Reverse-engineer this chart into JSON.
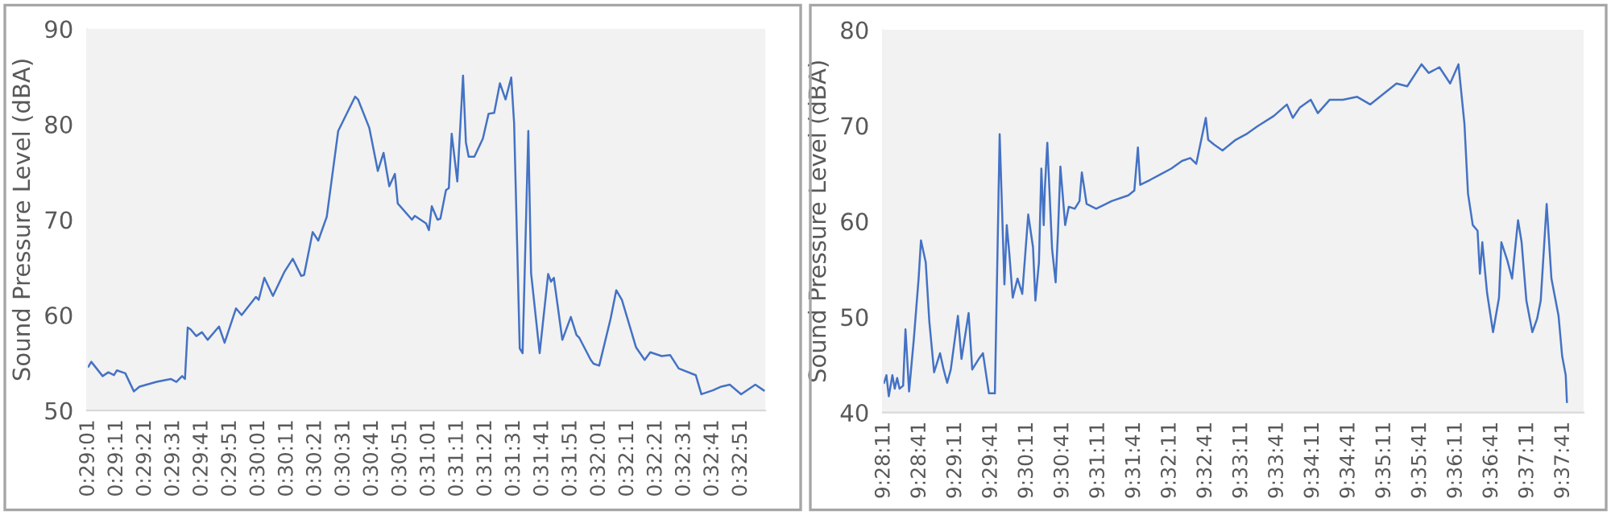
{
  "chart_data": [
    {
      "type": "line",
      "ylabel": "Sound Pressure Level (dBA)",
      "color": "#4472c4",
      "x": [
        0.48361,
        0.48389,
        0.485,
        0.48556,
        0.48611,
        0.48639,
        0.48722,
        0.48806,
        0.48861,
        0.49028,
        0.49167,
        0.49222,
        0.49278,
        0.49306,
        0.49333,
        0.49361,
        0.49417,
        0.49472,
        0.49528,
        0.49639,
        0.49694,
        0.49806,
        0.49861,
        0.5,
        0.50028,
        0.50083,
        0.50167,
        0.50278,
        0.50361,
        0.50444,
        0.50472,
        0.50556,
        0.50611,
        0.50694,
        0.50806,
        0.50972,
        0.51,
        0.51111,
        0.51194,
        0.5125,
        0.51306,
        0.51361,
        0.51389,
        0.51528,
        0.51556,
        0.51667,
        0.51694,
        0.51722,
        0.51778,
        0.51806,
        0.51861,
        0.51889,
        0.51917,
        0.51972,
        0.52028,
        0.52056,
        0.52083,
        0.52139,
        0.52222,
        0.52278,
        0.52333,
        0.52389,
        0.52444,
        0.525,
        0.52528,
        0.52583,
        0.52611,
        0.52667,
        0.52694,
        0.52778,
        0.52861,
        0.52889,
        0.52917,
        0.53,
        0.53083,
        0.53139,
        0.53167,
        0.53278,
        0.53306,
        0.53361,
        0.53472,
        0.53528,
        0.53583,
        0.53722,
        0.53806,
        0.53861,
        0.53972,
        0.54056,
        0.54139,
        0.54306,
        0.54361,
        0.54472,
        0.54556,
        0.54639,
        0.5475,
        0.54889,
        0.54972
      ],
      "values": [
        54.6,
        55.1,
        53.6,
        54.0,
        53.7,
        54.2,
        53.9,
        52.0,
        52.5,
        53.0,
        53.3,
        53.0,
        53.6,
        53.3,
        58.7,
        58.5,
        57.8,
        58.2,
        57.4,
        58.8,
        57.1,
        60.7,
        60.0,
        61.9,
        61.6,
        63.9,
        62.0,
        64.5,
        65.9,
        64.1,
        64.2,
        68.7,
        67.8,
        70.3,
        79.3,
        82.9,
        82.6,
        79.6,
        75.1,
        77.0,
        73.5,
        74.8,
        71.7,
        70.0,
        70.4,
        69.6,
        68.9,
        71.4,
        70.0,
        70.1,
        73.1,
        73.3,
        79.0,
        74.0,
        85.1,
        78.1,
        76.6,
        76.6,
        78.5,
        81.1,
        81.2,
        84.3,
        82.6,
        84.9,
        80.1,
        56.5,
        56.0,
        79.3,
        64.4,
        56.0,
        64.3,
        63.5,
        63.9,
        57.4,
        59.8,
        57.9,
        57.6,
        55.3,
        54.9,
        54.7,
        59.6,
        62.6,
        61.6,
        56.6,
        55.3,
        56.1,
        55.7,
        55.8,
        54.4,
        53.7,
        51.7,
        52.1,
        52.5,
        52.7,
        51.7,
        52.7,
        52.1
      ],
      "xlim": [
        0.48347,
        0.54986
      ],
      "xticks": [
        {
          "value": 0.48361,
          "label": "0:29:01"
        },
        {
          "value": 0.48639,
          "label": "0:29:11"
        },
        {
          "value": 0.48917,
          "label": "0:29:21"
        },
        {
          "value": 0.49194,
          "label": "0:29:31"
        },
        {
          "value": 0.49472,
          "label": "0:29:41"
        },
        {
          "value": 0.4975,
          "label": "0:29:51"
        },
        {
          "value": 0.50028,
          "label": "0:30:01"
        },
        {
          "value": 0.50306,
          "label": "0:30:11"
        },
        {
          "value": 0.50583,
          "label": "0:30:21"
        },
        {
          "value": 0.50861,
          "label": "0:30:31"
        },
        {
          "value": 0.51139,
          "label": "0:30:41"
        },
        {
          "value": 0.51417,
          "label": "0:30:51"
        },
        {
          "value": 0.51694,
          "label": "0:31:01"
        },
        {
          "value": 0.51972,
          "label": "0:31:11"
        },
        {
          "value": 0.5225,
          "label": "0:31:21"
        },
        {
          "value": 0.52528,
          "label": "0:31:31"
        },
        {
          "value": 0.52806,
          "label": "0:31:41"
        },
        {
          "value": 0.53083,
          "label": "0:31:51"
        },
        {
          "value": 0.53361,
          "label": "0:32:01"
        },
        {
          "value": 0.53639,
          "label": "0:32:11"
        },
        {
          "value": 0.53917,
          "label": "0:32:21"
        },
        {
          "value": 0.54194,
          "label": "0:32:31"
        },
        {
          "value": 0.54472,
          "label": "0:32:41"
        },
        {
          "value": 0.5475,
          "label": "0:32:51"
        }
      ],
      "ylim": [
        50,
        90
      ],
      "yticks": [
        50,
        60,
        70,
        80,
        90
      ]
    },
    {
      "type": "line",
      "ylabel": "Sound Pressure Level (dBA)",
      "color": "#4472c4",
      "x": [
        9.46972,
        9.47028,
        9.47083,
        9.47167,
        9.47222,
        9.47278,
        9.47333,
        9.47417,
        9.47472,
        9.47556,
        9.47667,
        9.47778,
        9.47833,
        9.47944,
        9.48028,
        9.48139,
        9.48278,
        9.48361,
        9.48444,
        9.48528,
        9.48694,
        9.48778,
        9.48944,
        9.49028,
        9.49194,
        9.49278,
        9.49417,
        9.49556,
        9.49667,
        9.49778,
        9.49833,
        9.49889,
        9.49972,
        9.50083,
        9.50194,
        9.50333,
        9.50444,
        9.505,
        9.50583,
        9.50639,
        9.50694,
        9.50722,
        9.50778,
        9.50889,
        9.50972,
        9.51028,
        9.51083,
        9.51194,
        9.51278,
        9.51417,
        9.51528,
        9.51583,
        9.51694,
        9.51917,
        9.52278,
        9.52667,
        9.52806,
        9.52889,
        9.52944,
        9.53167,
        9.53417,
        9.53667,
        9.53917,
        9.54111,
        9.5425,
        9.54472,
        9.54528,
        9.54667,
        9.54861,
        9.55167,
        9.55417,
        9.55667,
        9.56056,
        9.56361,
        9.565,
        9.56667,
        9.56917,
        9.57083,
        9.57361,
        9.57667,
        9.58,
        9.58306,
        9.58611,
        9.58917,
        9.59167,
        9.595,
        9.59667,
        9.59917,
        9.60167,
        9.60361,
        9.605,
        9.60583,
        9.60694,
        9.60806,
        9.60861,
        9.60917,
        9.61028,
        9.61167,
        9.61306,
        9.61361,
        9.615,
        9.61611,
        9.6175,
        9.61833,
        9.61944,
        9.62083,
        9.62194,
        9.62278,
        9.62417,
        9.62528,
        9.62694,
        9.62778,
        9.62861,
        9.62889
      ],
      "values": [
        43.1,
        43.9,
        41.7,
        43.9,
        42.5,
        43.6,
        42.5,
        42.8,
        48.7,
        42.2,
        47.7,
        54.0,
        58.0,
        55.7,
        49.5,
        44.2,
        46.2,
        44.5,
        43.1,
        44.5,
        50.1,
        45.6,
        50.4,
        44.5,
        45.7,
        46.2,
        42.0,
        42.0,
        69.1,
        53.4,
        59.6,
        56.8,
        52.0,
        54.0,
        52.4,
        60.7,
        57.3,
        51.7,
        55.7,
        65.5,
        59.6,
        63.5,
        68.2,
        57.1,
        53.6,
        59.0,
        65.7,
        59.6,
        61.5,
        61.3,
        62.1,
        65.1,
        61.8,
        61.3,
        62.1,
        62.7,
        63.2,
        67.7,
        63.8,
        64.3,
        64.9,
        65.5,
        66.3,
        66.6,
        66.0,
        70.8,
        68.5,
        68.0,
        67.4,
        68.5,
        69.1,
        69.9,
        71.0,
        72.2,
        70.8,
        71.9,
        72.7,
        71.3,
        72.7,
        72.7,
        73.0,
        72.2,
        73.3,
        74.4,
        74.1,
        76.4,
        75.5,
        76.1,
        74.4,
        76.4,
        70.2,
        62.9,
        59.6,
        59.0,
        54.5,
        57.8,
        52.5,
        48.4,
        52.0,
        57.8,
        55.9,
        54.0,
        60.1,
        57.8,
        51.7,
        48.4,
        49.8,
        51.7,
        61.8,
        54.0,
        50.1,
        45.9,
        43.9,
        41.1
      ],
      "xlim": [
        9.46944,
        9.63278
      ],
      "xticks": [
        {
          "value": 9.46972,
          "label": "9:28:11"
        },
        {
          "value": 9.47806,
          "label": "9:28:41"
        },
        {
          "value": 9.48639,
          "label": "9:29:11"
        },
        {
          "value": 9.49472,
          "label": "9:29:41"
        },
        {
          "value": 9.50306,
          "label": "9:30:11"
        },
        {
          "value": 9.51139,
          "label": "9:30:41"
        },
        {
          "value": 9.51972,
          "label": "9:31:11"
        },
        {
          "value": 9.52806,
          "label": "9:31:41"
        },
        {
          "value": 9.53639,
          "label": "9:32:11"
        },
        {
          "value": 9.54472,
          "label": "9:32:41"
        },
        {
          "value": 9.55306,
          "label": "9:33:11"
        },
        {
          "value": 9.56139,
          "label": "9:33:41"
        },
        {
          "value": 9.56972,
          "label": "9:34:11"
        },
        {
          "value": 9.57806,
          "label": "9:34:41"
        },
        {
          "value": 9.58639,
          "label": "9:35:11"
        },
        {
          "value": 9.59472,
          "label": "9:35:41"
        },
        {
          "value": 9.60306,
          "label": "9:36:11"
        },
        {
          "value": 9.61139,
          "label": "9:36:41"
        },
        {
          "value": 9.61972,
          "label": "9:37:11"
        },
        {
          "value": 9.62806,
          "label": "9:37:41"
        }
      ],
      "ylim": [
        40,
        80
      ],
      "yticks": [
        40,
        50,
        60,
        70,
        80
      ]
    }
  ]
}
